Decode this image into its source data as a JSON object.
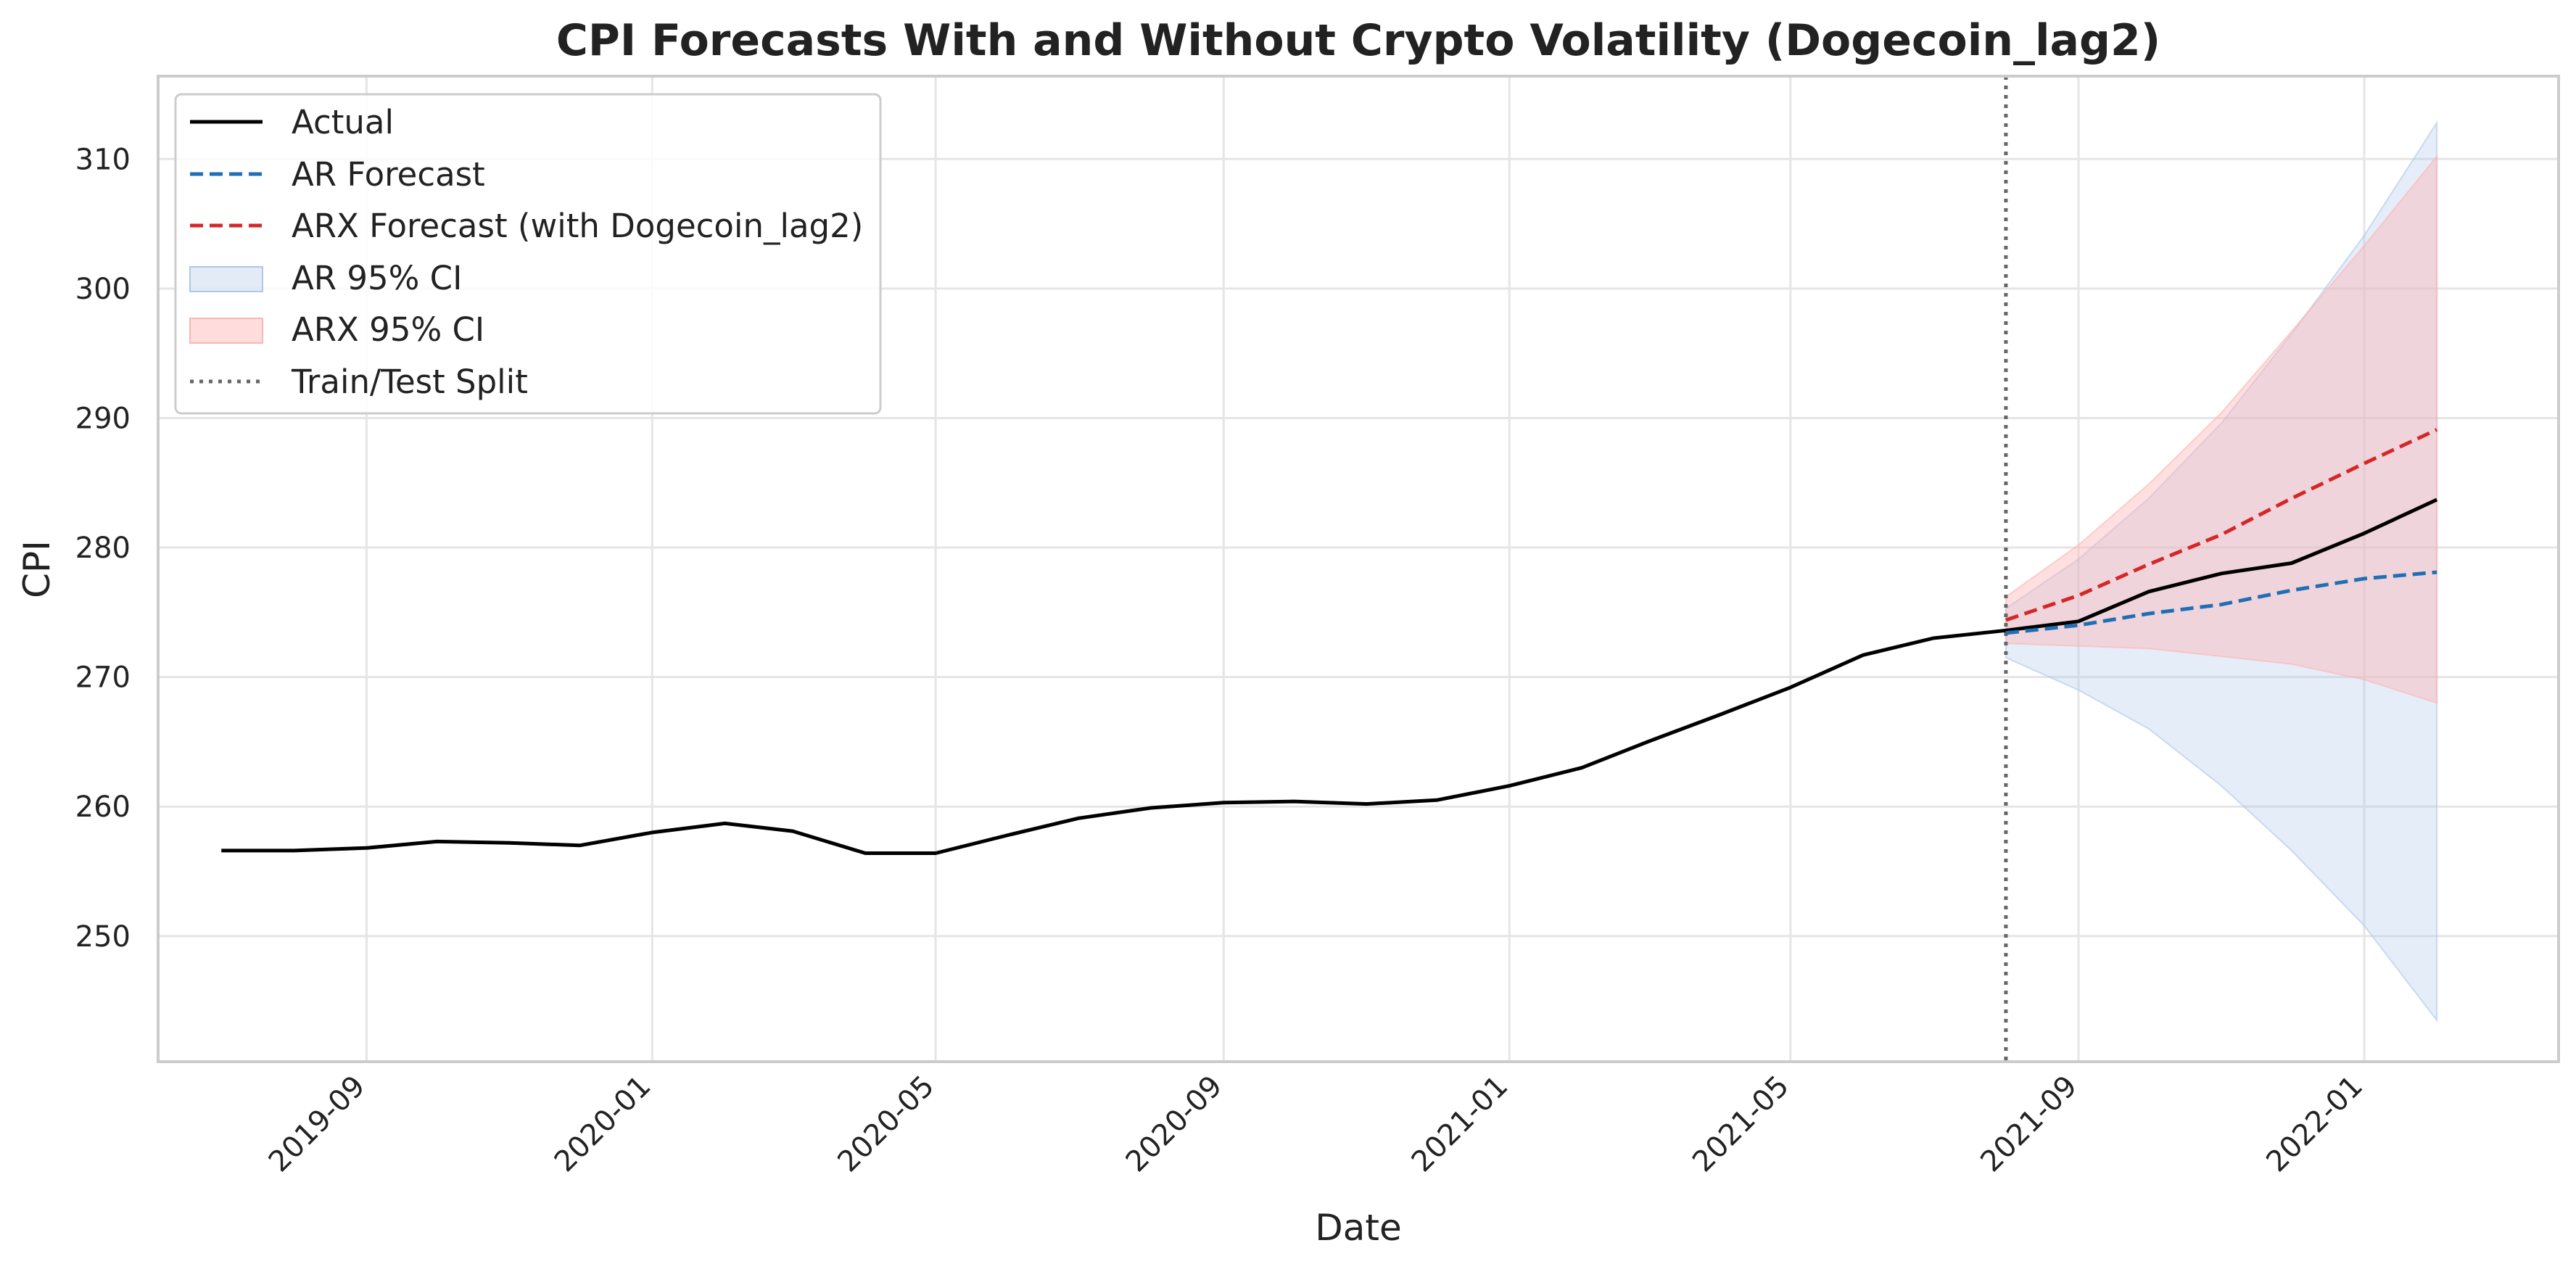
{
  "chart_data": {
    "type": "line",
    "title": "CPI Forecasts With and Without Crypto Volatility (Dogecoin_lag2)",
    "xlabel": "Date",
    "ylabel": "CPI",
    "xlim": [
      "2019-06-04",
      "2022-03-25"
    ],
    "ylim": [
      240.3,
      316.4
    ],
    "grid": true,
    "legend_position": "top-left",
    "x_ticks": [
      "2019-09",
      "2020-01",
      "2020-05",
      "2020-09",
      "2021-01",
      "2021-05",
      "2021-09",
      "2022-01"
    ],
    "y_ticks": [
      250,
      260,
      270,
      280,
      290,
      300,
      310
    ],
    "split_date": "2021-08-01",
    "actual": {
      "name": "Actual",
      "color": "#000000",
      "x": [
        "2019-07-01",
        "2019-08-01",
        "2019-09-01",
        "2019-10-01",
        "2019-11-01",
        "2019-12-01",
        "2020-01-01",
        "2020-02-01",
        "2020-03-01",
        "2020-04-01",
        "2020-05-01",
        "2020-06-01",
        "2020-07-01",
        "2020-08-01",
        "2020-09-01",
        "2020-10-01",
        "2020-11-01",
        "2020-12-01",
        "2021-01-01",
        "2021-02-01",
        "2021-03-01",
        "2021-04-01",
        "2021-05-01",
        "2021-06-01",
        "2021-07-01",
        "2021-08-01",
        "2021-09-01",
        "2021-10-01",
        "2021-11-01",
        "2021-12-01",
        "2022-01-01",
        "2022-02-01"
      ],
      "y": [
        256.6,
        256.6,
        256.8,
        257.3,
        257.2,
        257.0,
        258.0,
        258.7,
        258.1,
        256.4,
        256.4,
        257.8,
        259.1,
        259.9,
        260.3,
        260.4,
        260.2,
        260.5,
        261.6,
        263.0,
        265.0,
        267.1,
        269.2,
        271.7,
        273.0,
        273.6,
        274.3,
        276.6,
        278.0,
        278.8,
        281.1,
        283.7
      ]
    },
    "forecast_dates": [
      "2021-08-01",
      "2021-09-01",
      "2021-10-01",
      "2021-11-01",
      "2021-12-01",
      "2022-01-01",
      "2022-02-01"
    ],
    "ar_forecast": {
      "name": "AR Forecast",
      "color": "#1f6fb4",
      "y": [
        273.4,
        274.0,
        274.9,
        275.6,
        276.7,
        277.6,
        278.1
      ],
      "ci_lower": [
        271.5,
        269.0,
        266.0,
        261.6,
        256.6,
        250.8,
        243.5
      ],
      "ci_upper": [
        275.3,
        279.1,
        283.8,
        289.6,
        296.5,
        304.1,
        312.8
      ],
      "ci_name": "AR 95% CI",
      "ci_color": "#aec7e8"
    },
    "arx_forecast": {
      "name": "ARX Forecast (with Dogecoin_lag2)",
      "color": "#d62728",
      "y": [
        274.4,
        276.3,
        278.7,
        281.0,
        283.8,
        286.5,
        289.1
      ],
      "ci_lower": [
        272.6,
        272.4,
        272.2,
        271.6,
        271.0,
        269.8,
        268.0
      ],
      "ci_upper": [
        276.2,
        280.2,
        284.9,
        290.4,
        296.7,
        303.3,
        310.2
      ],
      "ci_name": "ARX 95% CI",
      "ci_color": "#ffb3b3"
    },
    "split_name": "Train/Test Split",
    "split_color": "#666666"
  }
}
